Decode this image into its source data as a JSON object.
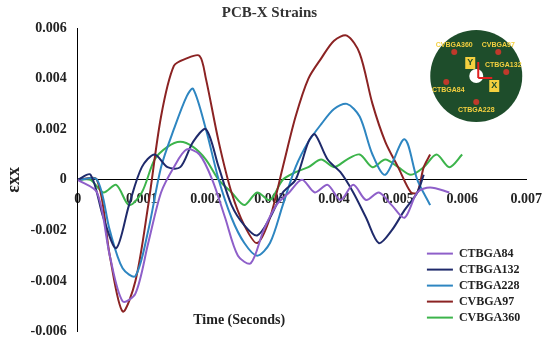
{
  "chart_data": {
    "type": "line",
    "title": "PCB-X Strains",
    "x_label": "Time (Seconds)",
    "y_label": "εxx",
    "xlim": [
      0,
      0.007
    ],
    "xticks": [
      0,
      0.001,
      0.002,
      0.003,
      0.004,
      0.005,
      0.006,
      0.007
    ],
    "ylim": [
      -0.006,
      0.006
    ],
    "yticks": [
      -0.006,
      -0.004,
      -0.002,
      0,
      0.002,
      0.004,
      0.006
    ],
    "grid": false,
    "legend": "bottom-right",
    "annotations": [
      "CVBGA360",
      "CVBGA97",
      "CTBGA132",
      "CTBGA84",
      "CTBGA228",
      "Y",
      "X"
    ],
    "series": [
      {
        "name": "CTBGA84",
        "color": "#8e5fc9",
        "x": [
          0,
          0.0003,
          0.0005,
          0.0007,
          0.0009,
          0.0011,
          0.0013,
          0.0015,
          0.0017,
          0.0019,
          0.0021,
          0.0023,
          0.0025,
          0.0027,
          0.0029,
          0.0031,
          0.0033,
          0.0035,
          0.0037,
          0.0039,
          0.0041,
          0.0043,
          0.0045,
          0.0047,
          0.0049,
          0.0051,
          0.0053,
          0.0055,
          0.0058
        ],
        "values": [
          0,
          -0.0005,
          -0.003,
          -0.0048,
          -0.0045,
          -0.0025,
          -0.0005,
          0.0005,
          0.0012,
          0.001,
          0,
          -0.0015,
          -0.003,
          -0.0033,
          -0.002,
          -0.001,
          -0.0005,
          0,
          -0.0005,
          -0.0002,
          -0.0008,
          -0.0002,
          -0.0008,
          -0.0005,
          -0.001,
          -0.0015,
          -0.0005,
          -0.0003,
          -0.0005
        ]
      },
      {
        "name": "CTBGA132",
        "color": "#1f2a6b",
        "x": [
          0,
          0.0002,
          0.0004,
          0.0006,
          0.0008,
          0.001,
          0.0012,
          0.0014,
          0.0016,
          0.0018,
          0.002,
          0.0022,
          0.0024,
          0.0026,
          0.0028,
          0.003,
          0.0032,
          0.0034,
          0.0036,
          0.0037,
          0.0039,
          0.0041,
          0.0043,
          0.0045,
          0.0047,
          0.0049,
          0.0051,
          0.0053,
          0.0054
        ],
        "values": [
          0,
          0.0002,
          -0.0015,
          -0.0027,
          -0.001,
          0.0005,
          0.001,
          0.0005,
          0.0005,
          0.0015,
          0.002,
          0.0005,
          -0.001,
          -0.0018,
          -0.0022,
          -0.0015,
          -0.0005,
          0,
          0.0015,
          0.0018,
          0.0008,
          0.0003,
          -0.0005,
          -0.0015,
          -0.0025,
          -0.002,
          -0.0012,
          -0.0005,
          0.0002
        ]
      },
      {
        "name": "CTBGA228",
        "color": "#2e86c1",
        "x": [
          0,
          0.0003,
          0.0005,
          0.0007,
          0.0009,
          0.0011,
          0.0013,
          0.0015,
          0.0017,
          0.0018,
          0.002,
          0.0022,
          0.0024,
          0.0026,
          0.0028,
          0.003,
          0.0032,
          0.0034,
          0.0036,
          0.0038,
          0.004,
          0.0042,
          0.0044,
          0.0046,
          0.0048,
          0.0051,
          0.0053,
          0.0055
        ],
        "values": [
          0,
          0,
          -0.002,
          -0.0035,
          -0.0038,
          -0.002,
          0.0005,
          0.002,
          0.0033,
          0.0036,
          0.002,
          0,
          -0.0015,
          -0.0025,
          -0.003,
          -0.0025,
          -0.001,
          0.0005,
          0.0015,
          0.0022,
          0.0028,
          0.003,
          0.0025,
          0.001,
          0.0002,
          0.0016,
          0,
          -0.001
        ]
      },
      {
        "name": "CVBGA97",
        "color": "#8b2323",
        "x": [
          0,
          0.0003,
          0.0005,
          0.0007,
          0.0009,
          0.0011,
          0.0013,
          0.0015,
          0.0017,
          0.0019,
          0.002,
          0.0022,
          0.0024,
          0.0026,
          0.0028,
          0.003,
          0.0032,
          0.0034,
          0.0036,
          0.0038,
          0.004,
          0.0042,
          0.0044,
          0.0046,
          0.0048,
          0.005,
          0.0052,
          0.0053,
          0.0054,
          0.0055
        ],
        "values": [
          0,
          0,
          -0.003,
          -0.0052,
          -0.004,
          -0.001,
          0.0025,
          0.0045,
          0.0048,
          0.0049,
          0.004,
          0.0015,
          -0.0005,
          -0.0018,
          -0.0025,
          -0.0015,
          0.0005,
          0.0025,
          0.004,
          0.0048,
          0.0055,
          0.0057,
          0.005,
          0.003,
          0.0015,
          0.0005,
          -0.0005,
          -0.0005,
          0.0005,
          0.001
        ]
      },
      {
        "name": "CVBGA360",
        "color": "#3cb44b",
        "x": [
          0,
          0.0002,
          0.0004,
          0.0006,
          0.0008,
          0.001,
          0.0012,
          0.0014,
          0.0016,
          0.0018,
          0.002,
          0.0022,
          0.0024,
          0.0026,
          0.0028,
          0.003,
          0.0032,
          0.0034,
          0.0036,
          0.0038,
          0.004,
          0.0042,
          0.0044,
          0.0046,
          0.0048,
          0.005,
          0.0052,
          0.0054,
          0.0056,
          0.0058,
          0.006
        ],
        "values": [
          0,
          0,
          -0.0005,
          -0.0002,
          -0.001,
          -0.0005,
          0.0008,
          0.0013,
          0.0015,
          0.0013,
          0.0008,
          0,
          -0.0005,
          -0.001,
          -0.0005,
          -0.0008,
          0,
          0.0003,
          0.0005,
          0.0008,
          0.0005,
          0.0008,
          0.001,
          0.0005,
          0.0008,
          0.0005,
          0.0002,
          0.0005,
          0.001,
          0.0005,
          0.001
        ]
      }
    ]
  }
}
